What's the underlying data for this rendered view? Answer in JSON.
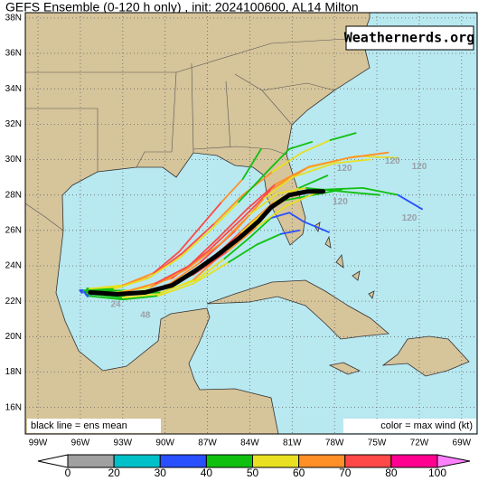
{
  "title": "GEFS Ensemble (0-120 h only) , init: 2024100600, AL14 Milton",
  "watermark": "Weathernerds.org",
  "lon_lim": [
    -99.9,
    -67.9
  ],
  "lat_lim": [
    14.5,
    38.3
  ],
  "lat_ticks": [
    {
      "value": 38,
      "label": "38N"
    },
    {
      "value": 36,
      "label": "36N"
    },
    {
      "value": 34,
      "label": "34N"
    },
    {
      "value": 32,
      "label": "32N"
    },
    {
      "value": 30,
      "label": "30N"
    },
    {
      "value": 28,
      "label": "28N"
    },
    {
      "value": 26,
      "label": "26N"
    },
    {
      "value": 24,
      "label": "24N"
    },
    {
      "value": 22,
      "label": "22N"
    },
    {
      "value": 20,
      "label": "20N"
    },
    {
      "value": 18,
      "label": "18N"
    },
    {
      "value": 16,
      "label": "16N"
    }
  ],
  "lon_ticks": [
    {
      "value": -99,
      "label": "99W"
    },
    {
      "value": -96,
      "label": "96W"
    },
    {
      "value": -93,
      "label": "93W"
    },
    {
      "value": -90,
      "label": "90W"
    },
    {
      "value": -87,
      "label": "87W"
    },
    {
      "value": -84,
      "label": "84W"
    },
    {
      "value": -81,
      "label": "81W"
    },
    {
      "value": -78,
      "label": "78W"
    },
    {
      "value": -75,
      "label": "75W"
    },
    {
      "value": -72,
      "label": "72W"
    },
    {
      "value": -69,
      "label": "69W"
    }
  ],
  "legend_left": "black line = ens mean",
  "legend_right": "color = max wind (kt)",
  "wind_scale": {
    "ticks": [
      0,
      20,
      30,
      40,
      50,
      60,
      70,
      80,
      100
    ],
    "colors": [
      "#a0a0a0",
      "#00c0c8",
      "#2850ff",
      "#10c010",
      "#e8e020",
      "#ff9028",
      "#ff4848",
      "#ff0090"
    ],
    "below_color": "#ffffff",
    "above_color": "#ff80ff"
  },
  "mean_track": {
    "lon": [
      -95.3,
      -93.4,
      -91.4,
      -89.5,
      -87.9,
      -86.3,
      -84.7,
      -83.4,
      -82.5,
      -81.2,
      -79.9,
      -78.8
    ],
    "lat": [
      22.5,
      22.4,
      22.5,
      22.9,
      23.7,
      24.6,
      25.6,
      26.5,
      27.3,
      28.0,
      28.2,
      28.2
    ]
  },
  "members": [
    {
      "lon": [
        -95.8,
        -92.5,
        -89.5,
        -87.0,
        -84.5,
        -82.5,
        -80.0,
        -76.5,
        -73.5
      ],
      "lat": [
        22.6,
        22.6,
        23.3,
        24.8,
        26.7,
        28.3,
        29.5,
        30.2,
        30.1
      ],
      "wind": [
        35,
        45,
        60,
        70,
        75,
        70,
        60,
        55,
        50
      ]
    },
    {
      "lon": [
        -95.6,
        -92.8,
        -90.0,
        -87.5,
        -85.0,
        -83.0,
        -81.0,
        -78.0,
        -75.5
      ],
      "lat": [
        22.4,
        22.3,
        22.8,
        24.2,
        26.0,
        27.8,
        29.0,
        29.8,
        30.0
      ],
      "wind": [
        35,
        45,
        55,
        65,
        70,
        65,
        55,
        50,
        55
      ]
    },
    {
      "lon": [
        -95.5,
        -93.0,
        -90.5,
        -88.0,
        -85.5,
        -83.5,
        -81.8,
        -80.5
      ],
      "lat": [
        22.3,
        22.1,
        22.3,
        23.0,
        24.2,
        25.2,
        25.8,
        26.0
      ],
      "wind": [
        35,
        40,
        45,
        50,
        50,
        45,
        40,
        35
      ]
    },
    {
      "lon": [
        -96.0,
        -93.5,
        -91.0,
        -88.5,
        -86.0,
        -84.0,
        -82.0,
        -80.0,
        -77.5,
        -74.8
      ],
      "lat": [
        22.6,
        22.5,
        22.8,
        23.8,
        25.3,
        26.9,
        28.1,
        28.4,
        28.2,
        28.0
      ],
      "wind": [
        35,
        45,
        55,
        60,
        65,
        60,
        55,
        50,
        45,
        40
      ]
    },
    {
      "lon": [
        -95.4,
        -93.0,
        -90.8,
        -89.0,
        -87.5,
        -86.0,
        -84.5,
        -83.2
      ],
      "lat": [
        22.7,
        22.9,
        23.6,
        24.8,
        26.2,
        27.6,
        28.9,
        30.6
      ],
      "wind": [
        40,
        50,
        60,
        70,
        75,
        70,
        60,
        40
      ]
    },
    {
      "lon": [
        -95.9,
        -93.3,
        -90.8,
        -88.4,
        -86.0,
        -84.0,
        -82.3,
        -80.5,
        -78.5
      ],
      "lat": [
        22.5,
        22.4,
        22.6,
        23.4,
        24.9,
        26.4,
        27.6,
        28.4,
        29.1
      ],
      "wind": [
        35,
        50,
        60,
        70,
        80,
        75,
        60,
        50,
        45
      ]
    },
    {
      "lon": [
        -95.2,
        -93.0,
        -90.5,
        -88.0,
        -86.2,
        -84.6,
        -83.0,
        -81.5,
        -79.5,
        -77.5
      ],
      "lat": [
        22.4,
        22.2,
        22.4,
        23.2,
        24.5,
        25.9,
        27.0,
        27.7,
        28.0,
        28.3
      ],
      "wind": [
        30,
        40,
        50,
        55,
        60,
        60,
        55,
        50,
        45,
        40
      ]
    },
    {
      "lon": [
        -95.6,
        -93.0,
        -90.3,
        -87.8,
        -85.8,
        -84.0,
        -82.5,
        -81.2,
        -80.2,
        -78.4
      ],
      "lat": [
        22.6,
        22.4,
        22.5,
        23.2,
        24.4,
        25.6,
        26.7,
        27.0,
        26.5,
        25.9
      ],
      "wind": [
        35,
        40,
        45,
        50,
        50,
        45,
        40,
        35,
        30,
        30
      ]
    },
    {
      "lon": [
        -95.7,
        -93.1,
        -90.6,
        -88.0,
        -85.6,
        -83.5,
        -81.4,
        -78.8,
        -76.0,
        -73.5,
        -71.8
      ],
      "lat": [
        22.5,
        22.4,
        22.7,
        23.5,
        24.8,
        26.2,
        27.4,
        28.3,
        28.4,
        28.0,
        27.2
      ],
      "wind": [
        35,
        45,
        55,
        65,
        70,
        65,
        55,
        50,
        45,
        40,
        35
      ]
    },
    {
      "lon": [
        -95.5,
        -93.2,
        -91.0,
        -88.8,
        -86.5,
        -84.5,
        -82.4,
        -80.3,
        -78.3,
        -76.5
      ],
      "lat": [
        22.7,
        22.8,
        23.4,
        24.7,
        26.4,
        28.0,
        29.3,
        30.4,
        31.1,
        31.5
      ],
      "wind": [
        40,
        50,
        60,
        70,
        70,
        65,
        60,
        55,
        50,
        45
      ]
    },
    {
      "lon": [
        -95.9,
        -93.6,
        -91.2,
        -88.9,
        -86.8,
        -84.8,
        -82.8,
        -81.2,
        -79.6
      ],
      "lat": [
        22.6,
        22.7,
        23.3,
        24.5,
        26.0,
        27.6,
        29.3,
        30.6,
        31.0
      ],
      "wind": [
        35,
        45,
        55,
        55,
        50,
        50,
        45,
        40,
        40
      ]
    },
    {
      "lon": [
        -95.3,
        -93.0,
        -90.7,
        -88.3,
        -86.2,
        -84.2,
        -82.2,
        -79.8,
        -77.0,
        -74.2
      ],
      "lat": [
        22.5,
        22.5,
        23.0,
        24.0,
        25.6,
        27.2,
        28.6,
        29.6,
        30.1,
        30.4
      ],
      "wind": [
        40,
        50,
        60,
        70,
        75,
        75,
        70,
        65,
        60,
        60
      ]
    }
  ],
  "hour_labels": [
    {
      "text": "24",
      "lon": -93.5,
      "lat": 21.8
    },
    {
      "text": "48",
      "lon": -91.4,
      "lat": 21.2
    },
    {
      "text": "120",
      "lon": -77.3,
      "lat": 29.5
    },
    {
      "text": "120",
      "lon": -73.9,
      "lat": 29.9
    },
    {
      "text": "120",
      "lon": -72.0,
      "lat": 29.6
    },
    {
      "text": "120",
      "lon": -72.7,
      "lat": 26.7
    },
    {
      "text": "120",
      "lon": -77.6,
      "lat": 27.6
    }
  ]
}
